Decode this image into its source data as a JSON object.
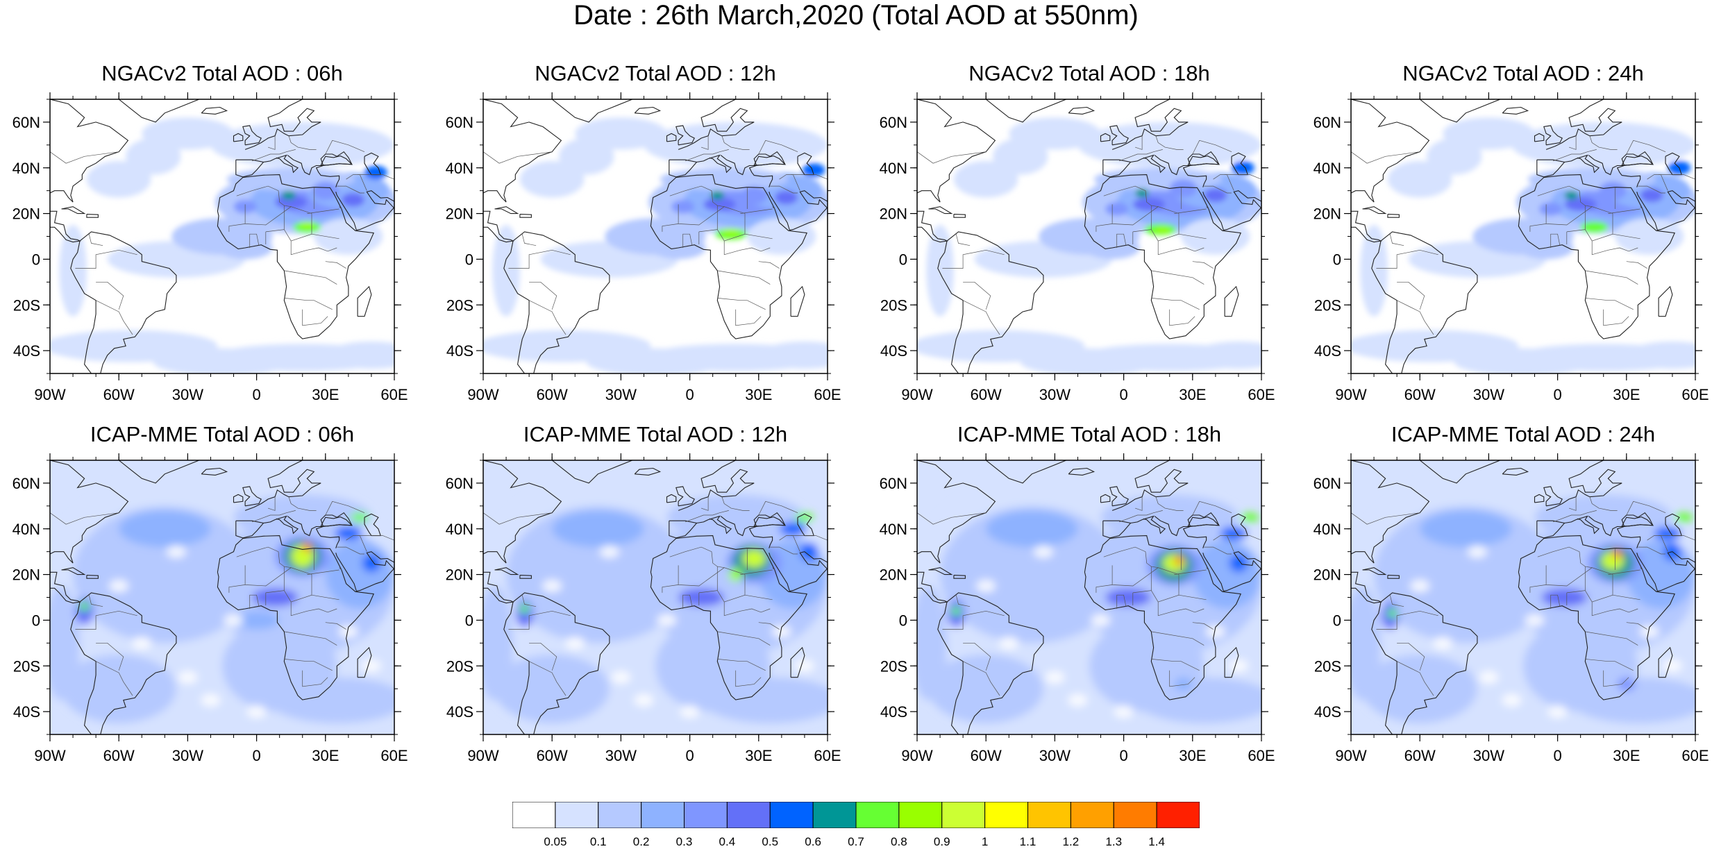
{
  "title": "Date : 26th March,2020 (Total AOD at 550nm)",
  "panels": [
    {
      "row": 0,
      "col": 0,
      "model": "NGACv2",
      "title": "NGACv2 Total AOD : 06h",
      "lead": "06h"
    },
    {
      "row": 0,
      "col": 1,
      "model": "NGACv2",
      "title": "NGACv2 Total AOD : 12h",
      "lead": "12h"
    },
    {
      "row": 0,
      "col": 2,
      "model": "NGACv2",
      "title": "NGACv2 Total AOD : 18h",
      "lead": "18h"
    },
    {
      "row": 0,
      "col": 3,
      "model": "NGACv2",
      "title": "NGACv2 Total AOD : 24h",
      "lead": "24h"
    },
    {
      "row": 1,
      "col": 0,
      "model": "ICAP-MME",
      "title": "ICAP-MME Total AOD : 06h",
      "lead": "06h"
    },
    {
      "row": 1,
      "col": 1,
      "model": "ICAP-MME",
      "title": "ICAP-MME Total AOD : 12h",
      "lead": "12h"
    },
    {
      "row": 1,
      "col": 2,
      "model": "ICAP-MME",
      "title": "ICAP-MME Total AOD : 18h",
      "lead": "18h"
    },
    {
      "row": 1,
      "col": 3,
      "model": "ICAP-MME",
      "title": "ICAP-MME Total AOD : 24h",
      "lead": "24h"
    }
  ],
  "lat_ticks": [
    {
      "label": "60N",
      "lat": 60
    },
    {
      "label": "40N",
      "lat": 40
    },
    {
      "label": "20N",
      "lat": 20
    },
    {
      "label": "0",
      "lat": 0
    },
    {
      "label": "20S",
      "lat": -20
    },
    {
      "label": "40S",
      "lat": -40
    }
  ],
  "lon_ticks": [
    {
      "label": "90W",
      "lon": -90
    },
    {
      "label": "60W",
      "lon": -60
    },
    {
      "label": "30W",
      "lon": -30
    },
    {
      "label": "0",
      "lon": 0
    },
    {
      "label": "30E",
      "lon": 30
    },
    {
      "label": "60E",
      "lon": 60
    }
  ],
  "domain": {
    "lon": [
      -90,
      60
    ],
    "lat": [
      -50,
      70
    ]
  },
  "colorbar": {
    "colors": [
      "#ffffff",
      "#d6e2ff",
      "#b5c9ff",
      "#8eb2ff",
      "#7f96ff",
      "#6370f8",
      "#0063ff",
      "#009696",
      "#66ff33",
      "#99ff00",
      "#ccff33",
      "#ffff00",
      "#ffc400",
      "#ffa000",
      "#ff7c00",
      "#ff2000"
    ],
    "labels": [
      "0.05",
      "0.1",
      "0.2",
      "0.3",
      "0.4",
      "0.5",
      "0.6",
      "0.7",
      "0.8",
      "0.9",
      "1",
      "1.1",
      "1.2",
      "1.3",
      "1.4"
    ]
  }
}
